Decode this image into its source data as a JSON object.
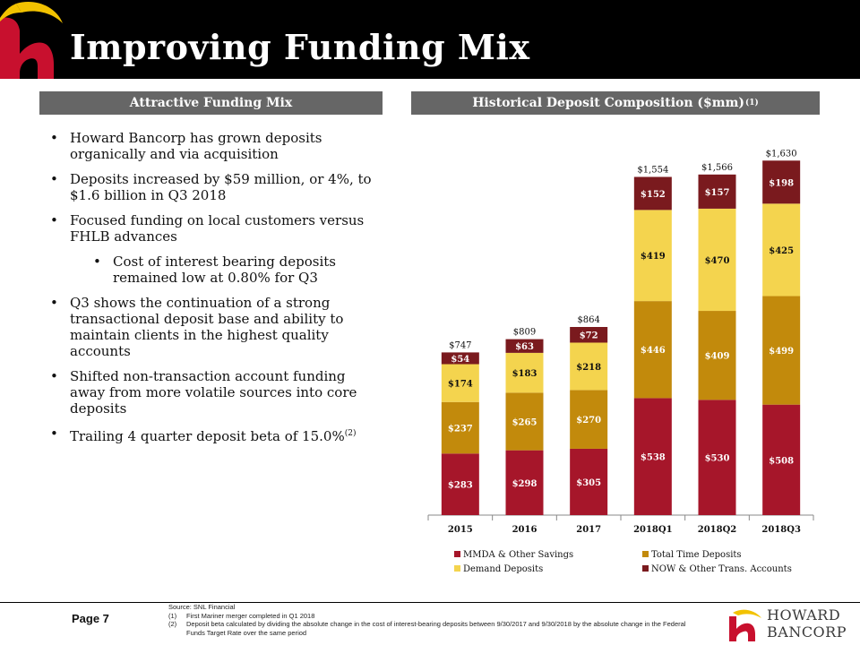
{
  "header": {
    "title": "Improving Funding Mix"
  },
  "left_panel": {
    "heading": "Attractive Funding Mix",
    "bullets": [
      {
        "text": "Howard Bancorp has grown deposits organically and via acquisition",
        "level": 1
      },
      {
        "text": "Deposits increased by $59 million, or 4%, to $1.6 billion in Q3 2018",
        "level": 1
      },
      {
        "text": "Focused funding on local customers versus FHLB advances",
        "level": 1
      },
      {
        "text": "Cost of interest bearing deposits remained low at 0.80% for Q3",
        "level": 2
      },
      {
        "text": "Q3 shows the continuation of a strong transactional deposit base and ability to maintain clients in the highest quality accounts",
        "level": 1
      },
      {
        "text": "Shifted non-transaction account funding away from more volatile sources into core deposits",
        "level": 1
      },
      {
        "text": "Trailing 4 quarter deposit beta of 15.0%",
        "level": 1,
        "sup": "(2)"
      }
    ]
  },
  "right_panel": {
    "heading": "Historical Deposit Composition ($mm)",
    "heading_sup": "(1)"
  },
  "chart_data": {
    "type": "bar",
    "stacked": true,
    "categories": [
      "2015",
      "2016",
      "2017",
      "2018Q1",
      "2018Q2",
      "2018Q3"
    ],
    "series": [
      {
        "name": "MMDA & Other Savings",
        "color": "#A6162A",
        "values": [
          283,
          298,
          305,
          538,
          530,
          508
        ],
        "labels": [
          "$283",
          "$298",
          "$305",
          "$538",
          "$530",
          "$508"
        ]
      },
      {
        "name": "Total Time Deposits",
        "color": "#C28A0C",
        "values": [
          237,
          265,
          270,
          446,
          409,
          499
        ],
        "labels": [
          "$237",
          "$265",
          "$270",
          "$446",
          "$409",
          "$499"
        ]
      },
      {
        "name": "Demand Deposits",
        "color": "#F4D44E",
        "values": [
          174,
          183,
          218,
          419,
          470,
          425
        ],
        "labels": [
          "$174",
          "$183",
          "$218",
          "$419",
          "$470",
          "$425"
        ]
      },
      {
        "name": "NOW & Other Trans. Accounts",
        "color": "#7A1A1E",
        "values": [
          54,
          63,
          72,
          152,
          157,
          198
        ],
        "labels": [
          "$54",
          "$63",
          "$72",
          "$152",
          "$157",
          "$198"
        ]
      }
    ],
    "totals": [
      "$747",
      "$809",
      "$864",
      "$1,554",
      "$1,566",
      "$1,630"
    ],
    "ylim": [
      0,
      1730
    ],
    "grid": false,
    "legend_position": "bottom"
  },
  "footer": {
    "page": "Page 7",
    "source": "Source: SNL Financial",
    "notes": [
      {
        "num": "(1)",
        "text": "First Mariner merger completed in Q1 2018"
      },
      {
        "num": "(2)",
        "text": "Deposit beta calculated by dividing the absolute change in the cost of interest-bearing deposits between 9/30/2017 and 9/30/2018 by the absolute change in the Federal Funds Target Rate over the same period"
      }
    ]
  },
  "brand": {
    "line1": "HOWARD",
    "line2": "BANCORP"
  }
}
